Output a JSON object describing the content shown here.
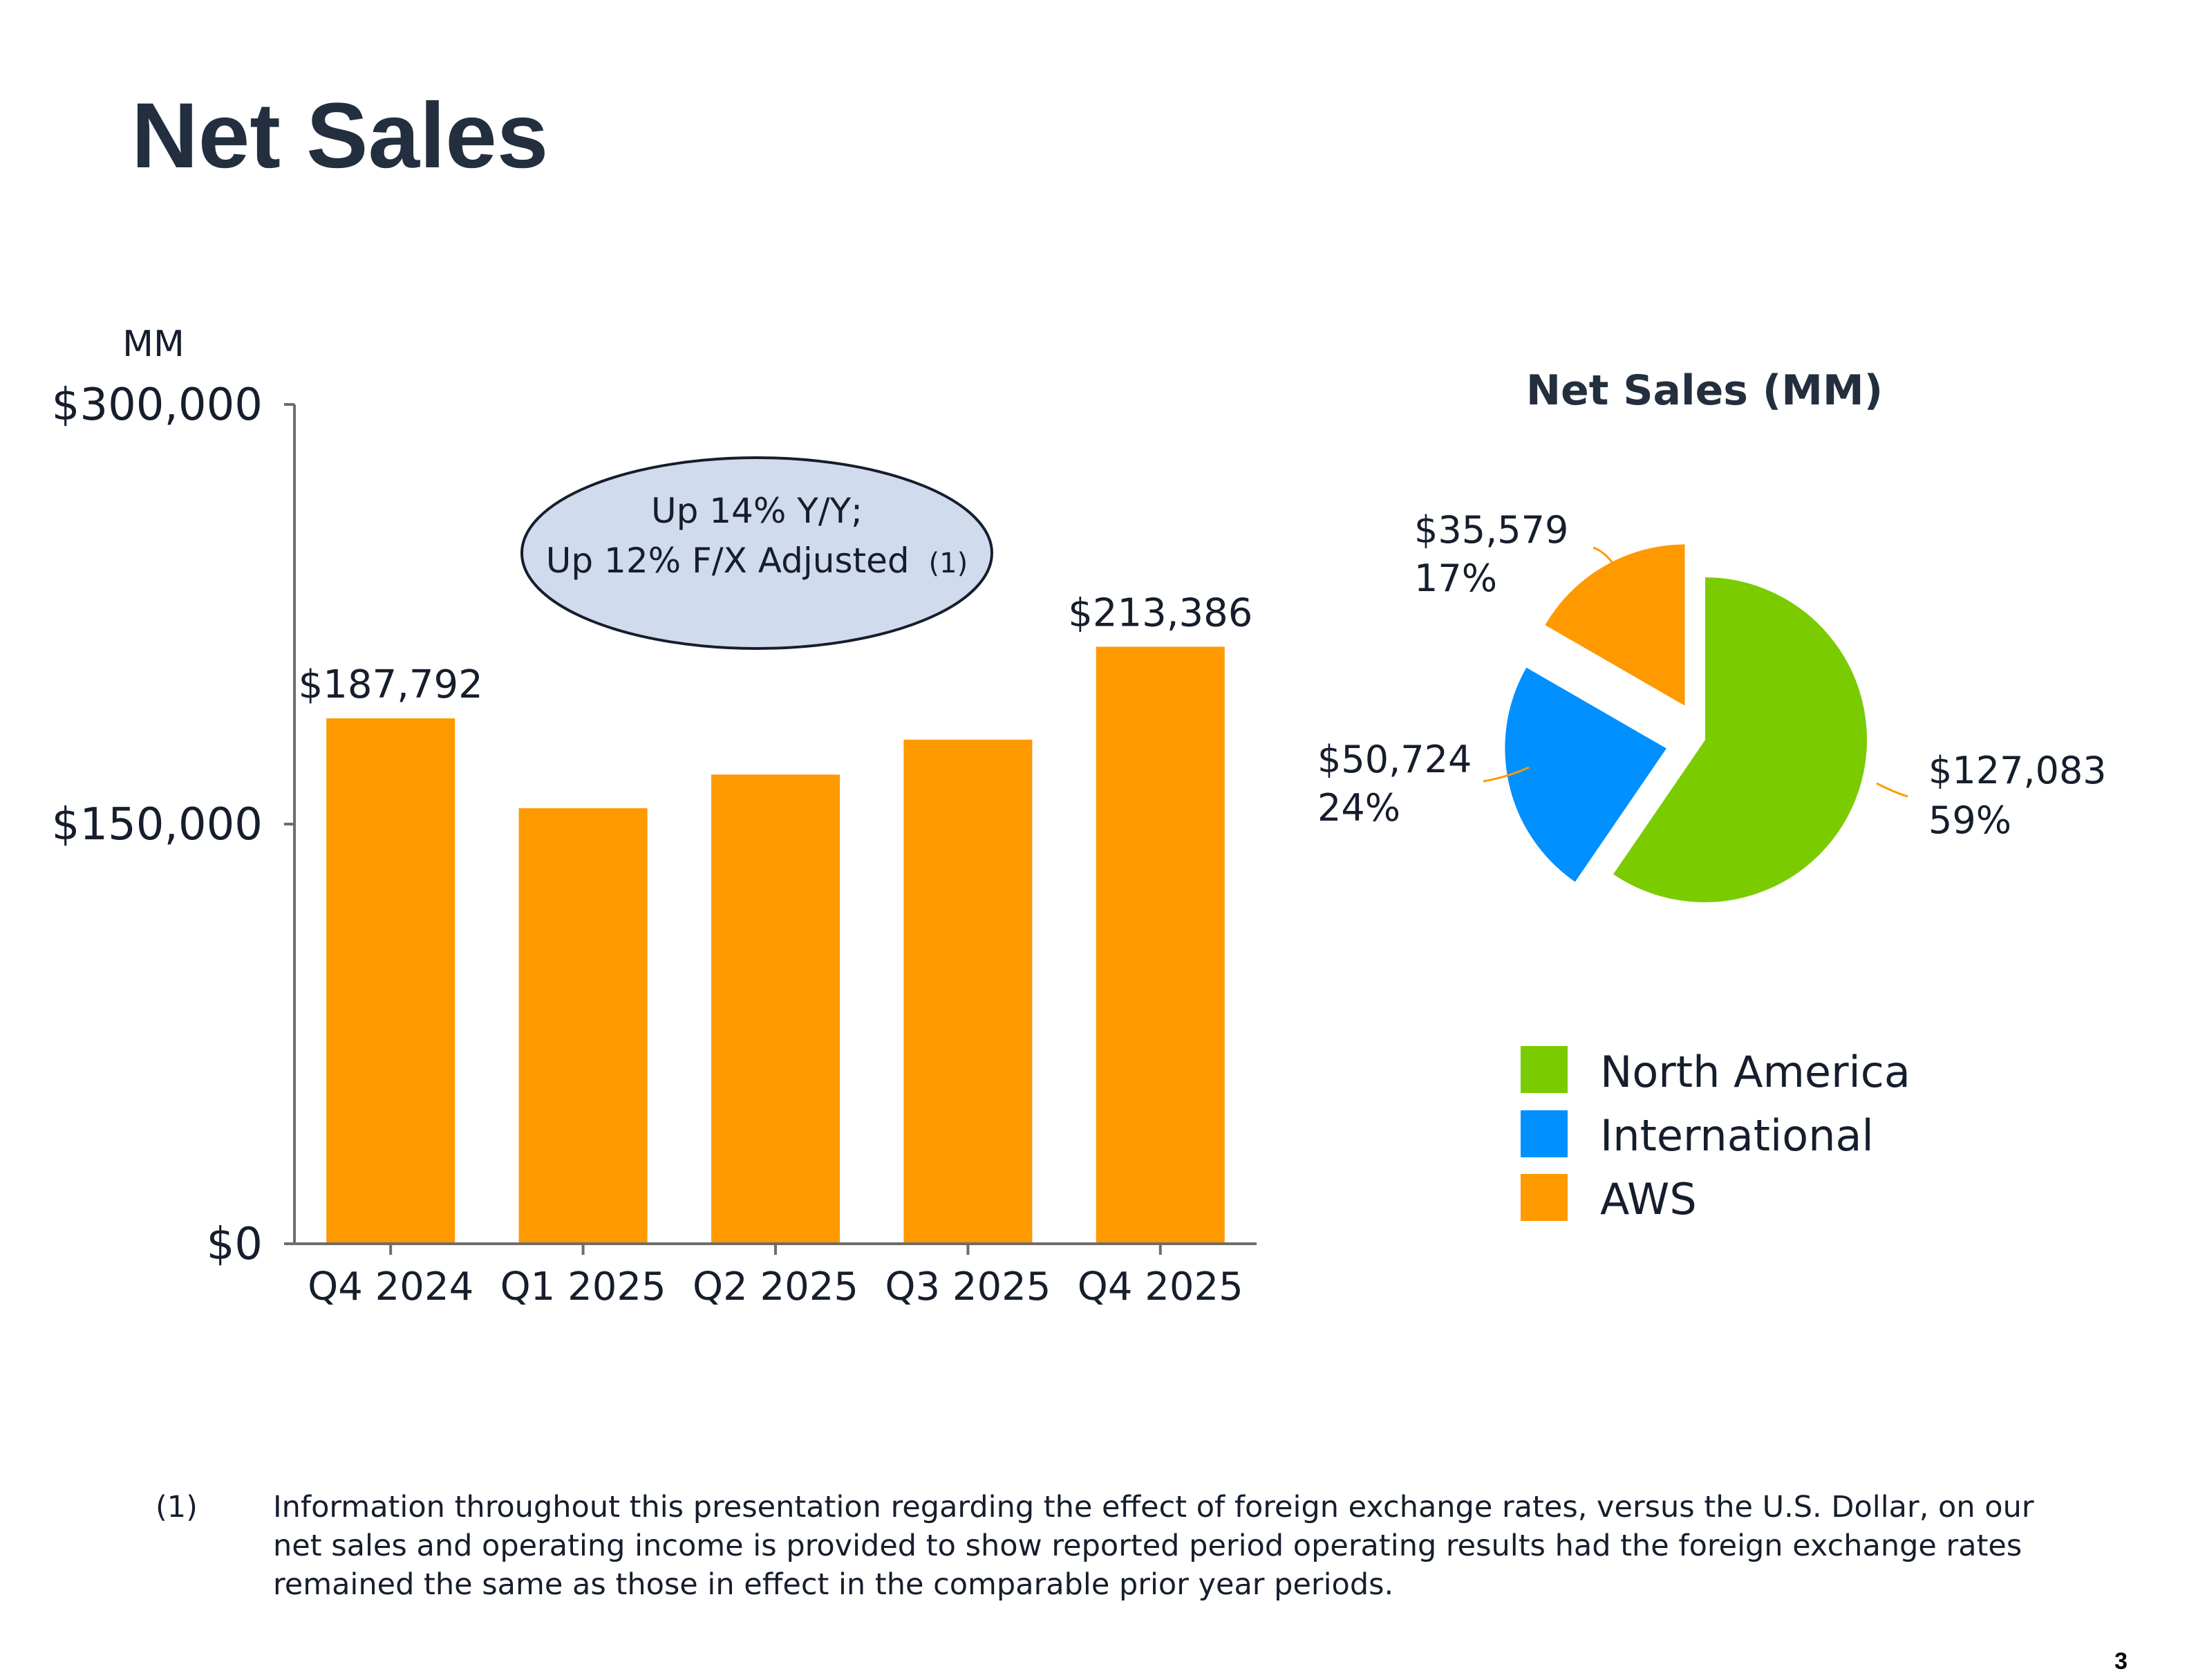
{
  "slide": {
    "title": "Net Sales",
    "page_number": "3"
  },
  "chart_data": [
    {
      "type": "bar",
      "title": "",
      "ylabel": "MM",
      "xlabel": "",
      "ylim": [
        0,
        300000
      ],
      "yticks": [
        0,
        150000,
        300000
      ],
      "ytick_labels": [
        "$0",
        "$150,000",
        "$300,000"
      ],
      "categories": [
        "Q4 2024",
        "Q1 2025",
        "Q2 2025",
        "Q3 2025",
        "Q4 2025"
      ],
      "values": [
        187792,
        155667,
        167702,
        180169,
        213386
      ],
      "data_labels": [
        "$187,792",
        "",
        "",
        "",
        "$213,386"
      ],
      "color": "#ff9900",
      "annotation": {
        "line1": "Up 14% Y/Y;",
        "line2": "Up 12% F/X Adjusted",
        "footnote_ref": "(1)"
      }
    },
    {
      "type": "pie",
      "title": "Net Sales (MM)",
      "slices": [
        {
          "name": "North America",
          "value": 127083,
          "value_label": "$127,083",
          "percent_label": "59%",
          "color": "#7acc00"
        },
        {
          "name": "International",
          "value": 50724,
          "value_label": "$50,724",
          "percent_label": "24%",
          "color": "#0090ff"
        },
        {
          "name": "AWS",
          "value": 35579,
          "value_label": "$35,579",
          "percent_label": "17%",
          "color": "#ff9900"
        }
      ],
      "legend_position": "below"
    }
  ],
  "footnote": {
    "marker": "(1)",
    "lines": [
      "Information throughout this presentation regarding the effect of foreign exchange rates, versus the U.S. Dollar, on our",
      "net sales and operating income is provided to show reported period operating results had the foreign exchange rates",
      "remained the same as those in effect in the comparable prior year periods."
    ]
  }
}
